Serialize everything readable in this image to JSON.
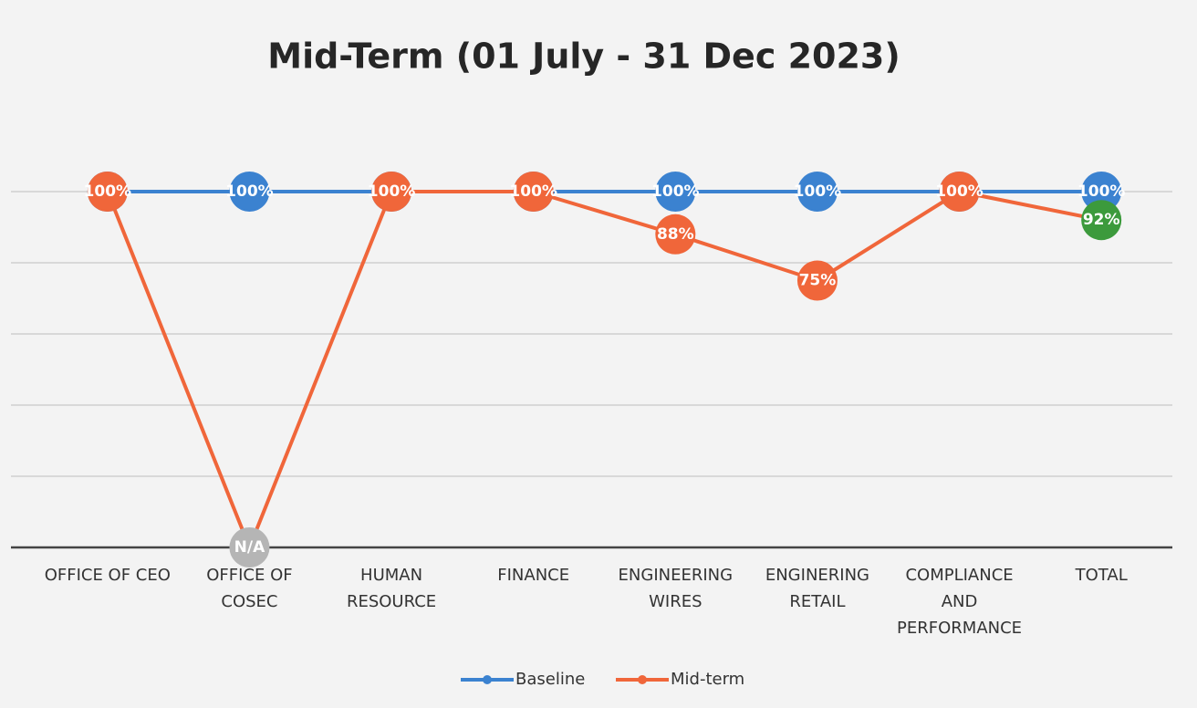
{
  "chart_data": {
    "type": "line",
    "title": "Mid-Term (01 July - 31 Dec 2023)",
    "categories": [
      "OFFICE OF CEO",
      "OFFICE OF\nCOSEC",
      "HUMAN\nRESOURCE",
      "FINANCE",
      "ENGINEERING\nWIRES",
      "ENGINERING\nRETAIL",
      "COMPLIANCE\nAND\nPERFORMANCE",
      "TOTAL"
    ],
    "series": [
      {
        "name": "Baseline",
        "color": "#3b82d0",
        "values": [
          100,
          100,
          100,
          100,
          100,
          100,
          100,
          100
        ],
        "value_labels": [
          "100%",
          "100%",
          "100%",
          "100%",
          "100%",
          "100%",
          "100%",
          "100%"
        ],
        "point_colors": [
          "#3b82d0",
          "#3b82d0",
          "#3b82d0",
          "#3b82d0",
          "#3b82d0",
          "#3b82d0",
          "#3b82d0",
          "#3b82d0"
        ]
      },
      {
        "name": "Mid-term",
        "color": "#f0663a",
        "values": [
          100,
          0,
          100,
          100,
          88,
          75,
          100,
          92
        ],
        "value_labels": [
          "100%",
          "N/A",
          "100%",
          "100%",
          "88%",
          "75%",
          "100%",
          "92%"
        ],
        "point_colors": [
          "#f0663a",
          "#b5b5b5",
          "#f0663a",
          "#f0663a",
          "#f0663a",
          "#f0663a",
          "#f0663a",
          "#3c9a3c"
        ]
      }
    ],
    "ylim": [
      0,
      100
    ],
    "yticks": [
      0,
      20,
      40,
      60,
      80,
      100
    ],
    "grid": true,
    "legend": "bottom"
  }
}
